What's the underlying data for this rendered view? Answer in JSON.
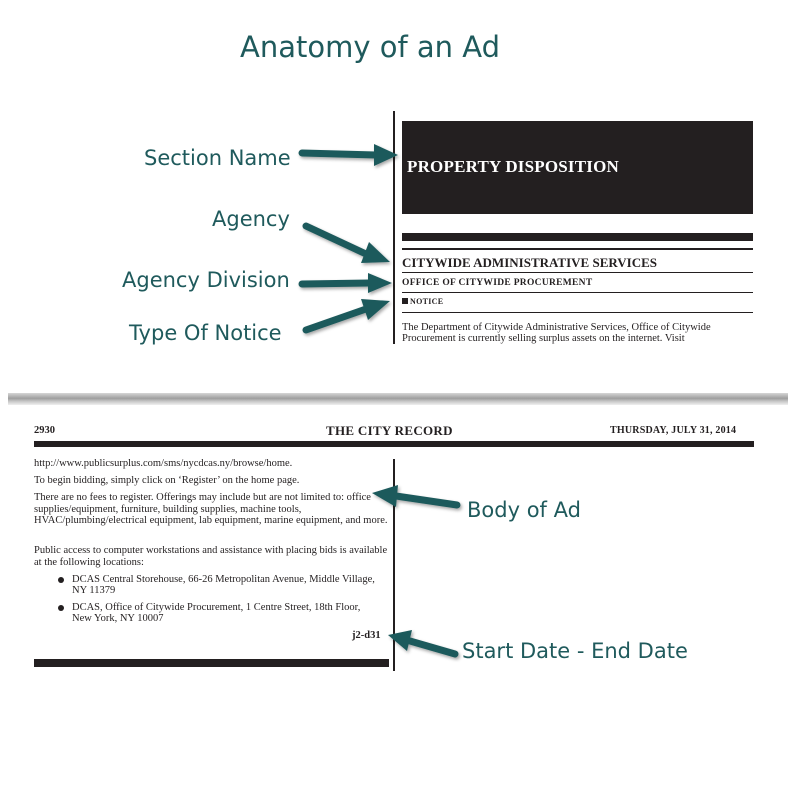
{
  "diagram": {
    "title": "Anatomy of an Ad"
  },
  "labels": {
    "section_name": "Section Name",
    "agency": "Agency",
    "agency_division": "Agency Division",
    "type_of_notice": "Type Of Notice",
    "body_of_ad": "Body of Ad",
    "start_end_date": "Start Date - End Date"
  },
  "ad_header": {
    "section": "PROPERTY DISPOSITION",
    "agency": "CITYWIDE ADMINISTRATIVE SERVICES",
    "division": "OFFICE OF CITYWIDE PROCUREMENT",
    "notice": "NOTICE",
    "intro": "The Department of Citywide Administrative Services, Office of Citywide Procurement is currently selling surplus assets on the internet. Visit"
  },
  "page": {
    "number": "2930",
    "newspaper": "THE CITY RECORD",
    "date": "THURSDAY, JULY 31, 2014"
  },
  "ad_body": {
    "p1": "http://www.publicsurplus.com/sms/nycdcas.ny/browse/home.",
    "p2": "To begin bidding, simply click on ‘Register’ on the home page.",
    "p3": "There are no fees to register. Offerings may include but are not limited to: office supplies/equipment, furniture, building supplies, machine tools, HVAC/plumbing/electrical equipment, lab equipment, marine equipment, and more.",
    "p4": "Public access to computer workstations and assistance with placing bids is available at the following locations:",
    "locations": [
      "DCAS Central Storehouse, 66-26 Metropolitan Avenue, Middle Village, NY 11379",
      "DCAS, Office of Citywide Procurement, 1 Centre Street, 18th Floor, New York, NY 10007"
    ],
    "dates": "j2-d31"
  },
  "colors": {
    "teal": "#1f5a5c",
    "ink": "#231f20"
  }
}
